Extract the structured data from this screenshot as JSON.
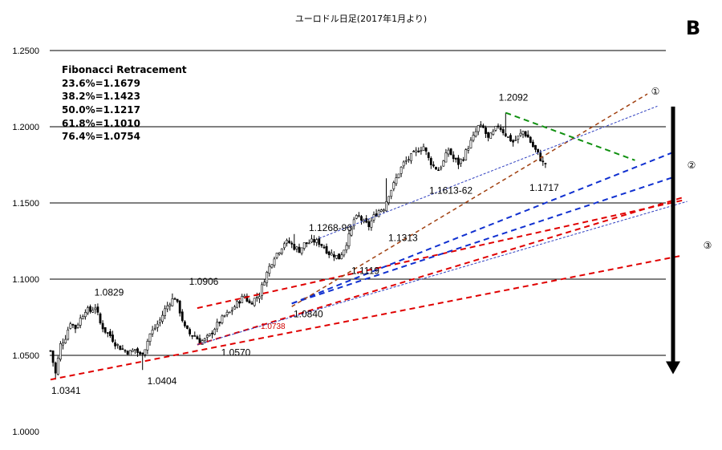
{
  "chart_data": {
    "type": "candlestick",
    "title": "ユーロドル日足(2017年1月より)",
    "panel_label": "B",
    "y_ticks": [
      "1.2500",
      "1.2000",
      "1.1500",
      "1.1000",
      "1.0500",
      "1.0000"
    ],
    "ylim": [
      1.0,
      1.25
    ],
    "grid": "horizontal",
    "fibonacci": {
      "title": "Fibonacci Retracement",
      "levels": [
        "23.6%=1.1679",
        "38.2%=1.1423",
        "50.0%=1.1217",
        "61.8%=1.1010",
        "76.4%=1.0754"
      ]
    },
    "price_labels": [
      {
        "text": "1.0341",
        "value": 1.0341
      },
      {
        "text": "1.0829",
        "value": 1.0829
      },
      {
        "text": "1.0404",
        "value": 1.0404
      },
      {
        "text": "1.0906",
        "value": 1.0906
      },
      {
        "text": "1.0570",
        "value": 1.057
      },
      {
        "text": "1.0738",
        "value": 1.0738
      },
      {
        "text": "1.0840",
        "value": 1.084
      },
      {
        "text": "1.1268-96",
        "value": 1.1268
      },
      {
        "text": "1.1119",
        "value": 1.1119
      },
      {
        "text": "1.1313",
        "value": 1.1313
      },
      {
        "text": "1.1613-62",
        "value": 1.1613
      },
      {
        "text": "1.2092",
        "value": 1.2092
      },
      {
        "text": "1.1717",
        "value": 1.1717
      }
    ],
    "line_markers": [
      "①",
      "②",
      "③"
    ],
    "trendline_colors": {
      "red": "#e00000",
      "blue": "#1030d0",
      "brown": "#a04010",
      "green": "#109010",
      "thin_blue": "#3040c0"
    },
    "closes_anchor": [
      [
        0,
        1.053
      ],
      [
        2,
        1.038
      ],
      [
        4,
        1.057
      ],
      [
        6,
        1.062
      ],
      [
        8,
        1.072
      ],
      [
        10,
        1.068
      ],
      [
        12,
        1.074
      ],
      [
        14,
        1.08
      ],
      [
        16,
        1.079
      ],
      [
        18,
        1.082
      ],
      [
        20,
        1.071
      ],
      [
        22,
        1.066
      ],
      [
        24,
        1.063
      ],
      [
        26,
        1.058
      ],
      [
        28,
        1.055
      ],
      [
        30,
        1.053
      ],
      [
        32,
        1.052
      ],
      [
        34,
        1.054
      ],
      [
        36,
        1.05
      ],
      [
        38,
        1.055
      ],
      [
        40,
        1.064
      ],
      [
        42,
        1.068
      ],
      [
        44,
        1.073
      ],
      [
        46,
        1.08
      ],
      [
        48,
        1.085
      ],
      [
        50,
        1.088
      ],
      [
        52,
        1.079
      ],
      [
        54,
        1.068
      ],
      [
        56,
        1.064
      ],
      [
        58,
        1.063
      ],
      [
        60,
        1.059
      ],
      [
        62,
        1.06
      ],
      [
        64,
        1.063
      ],
      [
        66,
        1.068
      ],
      [
        68,
        1.072
      ],
      [
        70,
        1.076
      ],
      [
        72,
        1.078
      ],
      [
        74,
        1.082
      ],
      [
        76,
        1.086
      ],
      [
        78,
        1.089
      ],
      [
        80,
        1.084
      ],
      [
        82,
        1.087
      ],
      [
        84,
        1.09
      ],
      [
        86,
        1.1
      ],
      [
        88,
        1.108
      ],
      [
        90,
        1.115
      ],
      [
        92,
        1.119
      ],
      [
        94,
        1.124
      ],
      [
        96,
        1.124
      ],
      [
        98,
        1.121
      ],
      [
        100,
        1.119
      ],
      [
        102,
        1.123
      ],
      [
        104,
        1.124
      ],
      [
        106,
        1.125
      ],
      [
        108,
        1.124
      ],
      [
        110,
        1.121
      ],
      [
        112,
        1.117
      ],
      [
        114,
        1.116
      ],
      [
        116,
        1.114
      ],
      [
        118,
        1.12
      ],
      [
        120,
        1.128
      ],
      [
        122,
        1.139
      ],
      [
        124,
        1.141
      ],
      [
        126,
        1.137
      ],
      [
        128,
        1.135
      ],
      [
        130,
        1.141
      ],
      [
        132,
        1.145
      ],
      [
        134,
        1.147
      ],
      [
        136,
        1.156
      ],
      [
        138,
        1.162
      ],
      [
        140,
        1.17
      ],
      [
        142,
        1.176
      ],
      [
        144,
        1.179
      ],
      [
        146,
        1.182
      ],
      [
        148,
        1.185
      ],
      [
        150,
        1.187
      ],
      [
        152,
        1.179
      ],
      [
        154,
        1.174
      ],
      [
        156,
        1.172
      ],
      [
        158,
        1.177
      ],
      [
        160,
        1.185
      ],
      [
        162,
        1.179
      ],
      [
        164,
        1.176
      ],
      [
        166,
        1.18
      ],
      [
        168,
        1.187
      ],
      [
        170,
        1.193
      ],
      [
        172,
        1.2
      ],
      [
        174,
        1.199
      ],
      [
        176,
        1.192
      ],
      [
        178,
        1.196
      ],
      [
        180,
        1.201
      ],
      [
        182,
        1.197
      ],
      [
        184,
        1.193
      ],
      [
        186,
        1.19
      ],
      [
        188,
        1.193
      ],
      [
        190,
        1.197
      ],
      [
        192,
        1.193
      ],
      [
        194,
        1.187
      ],
      [
        196,
        1.182
      ],
      [
        198,
        1.176
      ]
    ]
  }
}
